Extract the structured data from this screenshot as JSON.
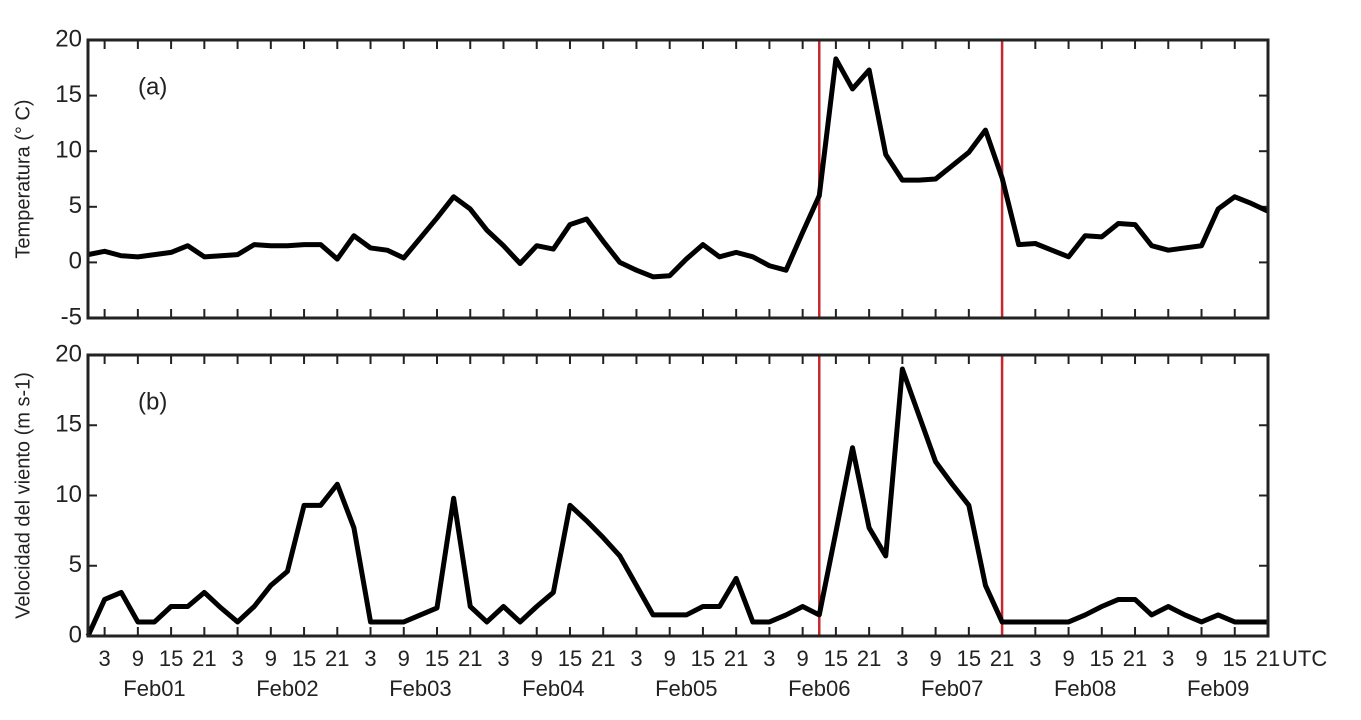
{
  "chart_data": [
    {
      "type": "line",
      "annotation": "(a)",
      "ylabel": "Temperatura (° C)",
      "xlim": [
        0,
        213
      ],
      "ylim": [
        -5,
        20
      ],
      "yticks": [
        -5,
        0,
        5,
        10,
        15,
        20
      ],
      "vlines": [
        132,
        165
      ],
      "vline_color": "#c8282d",
      "x": [
        0,
        3,
        6,
        9,
        12,
        15,
        18,
        21,
        24,
        27,
        30,
        33,
        36,
        39,
        42,
        45,
        48,
        51,
        54,
        57,
        60,
        63,
        66,
        69,
        72,
        75,
        78,
        81,
        84,
        87,
        90,
        93,
        96,
        99,
        102,
        105,
        108,
        111,
        114,
        117,
        120,
        123,
        126,
        129,
        132,
        135,
        138,
        141,
        144,
        147,
        150,
        153,
        156,
        159,
        162,
        165,
        168,
        171,
        174,
        177,
        180,
        183,
        186,
        189,
        192,
        195,
        198,
        201,
        204,
        207,
        210,
        213
      ],
      "series": [
        {
          "name": "Temperatura",
          "color": "#000000",
          "values": [
            0.7,
            1.0,
            0.6,
            0.5,
            0.7,
            0.9,
            1.5,
            0.5,
            0.6,
            0.7,
            1.6,
            1.5,
            1.5,
            1.6,
            1.6,
            0.3,
            2.4,
            1.3,
            1.1,
            0.4,
            2.2,
            4.0,
            5.9,
            4.8,
            2.9,
            1.5,
            -0.1,
            1.5,
            1.2,
            3.4,
            3.9,
            1.9,
            0.0,
            -0.7,
            -1.3,
            -1.2,
            0.3,
            1.6,
            0.5,
            0.9,
            0.5,
            -0.3,
            -0.7,
            2.7,
            6.0,
            18.3,
            15.6,
            17.3,
            9.7,
            7.4,
            7.4,
            7.5,
            8.7,
            9.9,
            11.9,
            7.6,
            1.6,
            1.7,
            1.1,
            0.5,
            2.4,
            2.3,
            3.5,
            3.4,
            1.5,
            1.1,
            1.3,
            1.5,
            4.8,
            5.9,
            5.3,
            4.6
          ]
        }
      ]
    },
    {
      "type": "line",
      "annotation": "(b)",
      "ylabel": "Velocidad del viento (m s-1)",
      "xlim": [
        0,
        213
      ],
      "ylim": [
        0,
        20
      ],
      "yticks": [
        0,
        5,
        10,
        15,
        20
      ],
      "vlines": [
        132,
        165
      ],
      "vline_color": "#c8282d",
      "xlabel": "UTC",
      "days": [
        "Feb01",
        "Feb02",
        "Feb03",
        "Feb04",
        "Feb05",
        "Feb06",
        "Feb07",
        "Feb08",
        "Feb09"
      ],
      "xticks": [
        3,
        9,
        15,
        21,
        {
          "value": 27,
          "label": "3"
        },
        {
          "value": 33,
          "label": "9"
        },
        {
          "value": 39,
          "label": "15"
        },
        {
          "value": 45,
          "label": "21"
        },
        {
          "value": 51,
          "label": "3"
        },
        {
          "value": 57,
          "label": "9"
        },
        {
          "value": 63,
          "label": "15"
        },
        {
          "value": 69,
          "label": "21"
        },
        {
          "value": 75,
          "label": "3"
        },
        {
          "value": 81,
          "label": "9"
        },
        {
          "value": 87,
          "label": "15"
        },
        {
          "value": 93,
          "label": "21"
        },
        {
          "value": 99,
          "label": "3"
        },
        {
          "value": 105,
          "label": "9"
        },
        {
          "value": 111,
          "label": "15"
        },
        {
          "value": 117,
          "label": "21"
        },
        {
          "value": 123,
          "label": "3"
        },
        {
          "value": 129,
          "label": "9"
        },
        {
          "value": 135,
          "label": "15"
        },
        {
          "value": 141,
          "label": "21"
        },
        {
          "value": 147,
          "label": "3"
        },
        {
          "value": 153,
          "label": "9"
        },
        {
          "value": 159,
          "label": "15"
        },
        {
          "value": 165,
          "label": "21"
        },
        {
          "value": 171,
          "label": "3"
        },
        {
          "value": 177,
          "label": "9"
        },
        {
          "value": 183,
          "label": "15"
        },
        {
          "value": 189,
          "label": "21"
        },
        {
          "value": 195,
          "label": "3"
        },
        {
          "value": 201,
          "label": "9"
        },
        {
          "value": 207,
          "label": "15"
        },
        {
          "value": 213,
          "label": "21"
        }
      ],
      "x": [
        0,
        3,
        6,
        9,
        12,
        15,
        18,
        21,
        24,
        27,
        30,
        33,
        36,
        39,
        42,
        45,
        48,
        51,
        54,
        57,
        60,
        63,
        66,
        69,
        72,
        75,
        78,
        81,
        84,
        87,
        90,
        93,
        96,
        99,
        102,
        105,
        108,
        111,
        114,
        117,
        120,
        123,
        126,
        129,
        132,
        135,
        138,
        141,
        144,
        147,
        150,
        153,
        156,
        159,
        162,
        165,
        168,
        171,
        174,
        177,
        180,
        183,
        186,
        189,
        192,
        195,
        198,
        201,
        204,
        207,
        210,
        213
      ],
      "series": [
        {
          "name": "Velocidad del viento",
          "color": "#000000",
          "values": [
            0,
            2.6,
            3.1,
            1.0,
            1.0,
            2.1,
            2.1,
            3.1,
            2.0,
            1.0,
            2.1,
            3.6,
            4.6,
            9.3,
            9.3,
            10.8,
            7.7,
            1.0,
            1.0,
            1.0,
            1.5,
            2.0,
            9.8,
            2.1,
            1.0,
            2.1,
            1.0,
            2.1,
            3.1,
            9.3,
            8.2,
            7.0,
            5.7,
            3.6,
            1.5,
            1.5,
            1.5,
            2.1,
            2.1,
            4.1,
            1.0,
            1.0,
            1.5,
            2.1,
            1.5,
            7.4,
            13.4,
            7.7,
            5.7,
            19.0,
            15.7,
            12.4,
            10.8,
            9.3,
            3.6,
            1.0,
            1.0,
            1.0,
            1.0,
            1.0,
            1.5,
            2.1,
            2.6,
            2.6,
            1.5,
            2.1,
            1.5,
            1.0,
            1.5,
            1.0,
            1.0,
            1.0
          ]
        }
      ]
    }
  ]
}
